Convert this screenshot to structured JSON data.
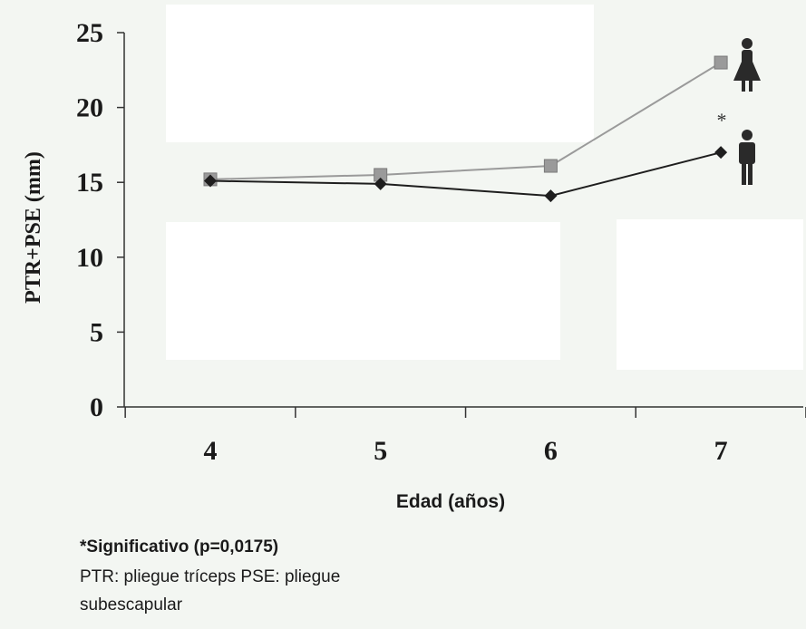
{
  "chart_data": {
    "type": "line",
    "ylabel": "PTR+PSE (mm)",
    "xlabel": "Edad (años)",
    "categories": [
      "4",
      "5",
      "6",
      "7"
    ],
    "y_ticks": [
      "0",
      "5",
      "10",
      "15",
      "20",
      "25"
    ],
    "ylim": [
      0,
      25
    ],
    "grid": false,
    "series": [
      {
        "name": "female",
        "marker": "square",
        "color": "#9a9a9a",
        "values": [
          15.2,
          15.5,
          16.1,
          23.0
        ]
      },
      {
        "name": "male",
        "marker": "diamond",
        "color": "#1e1e1e",
        "values": [
          15.1,
          14.9,
          14.1,
          17.0
        ]
      }
    ],
    "annotation": "*"
  },
  "footnotes": {
    "significance": "*Significativo (p=0,0175)",
    "definitions_line1": "PTR: pliegue tríceps   PSE: pliegue",
    "definitions_line2": "subescapular"
  },
  "icons": [
    "female-figure-icon",
    "male-figure-icon"
  ]
}
